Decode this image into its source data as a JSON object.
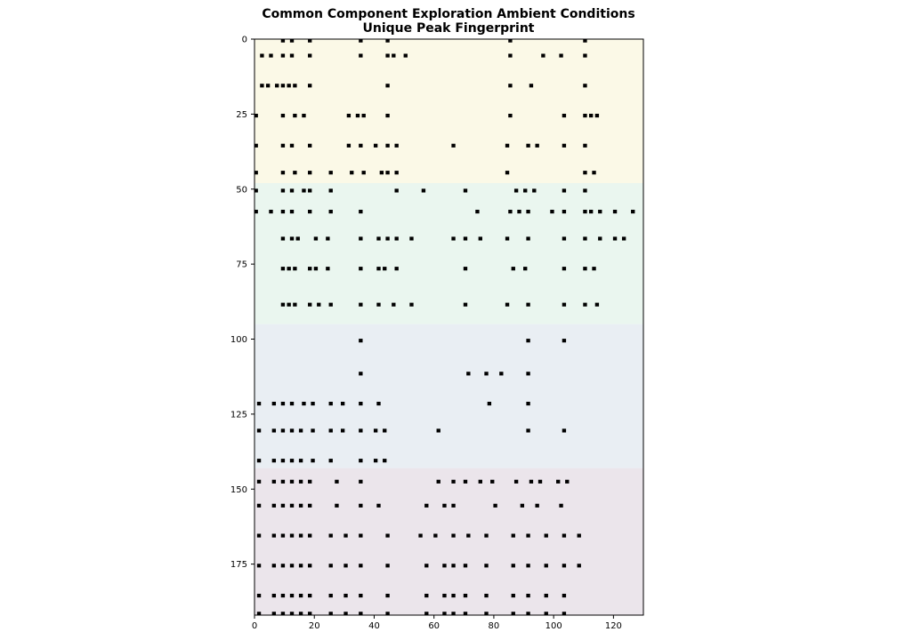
{
  "chart_data": {
    "type": "heatmap",
    "title": "Common Component Exploration Ambient Conditions",
    "subtitle": "Unique Peak Fingerprint",
    "xlabel": "",
    "ylabel": "",
    "xlim": [
      0,
      130
    ],
    "ylim": [
      192,
      0
    ],
    "x_ticks": [
      0,
      20,
      40,
      60,
      80,
      100,
      120
    ],
    "y_ticks": [
      0,
      25,
      50,
      75,
      100,
      125,
      150,
      175
    ],
    "grid": false,
    "n_columns": 130,
    "n_rows": 192,
    "bands": [
      {
        "row_start": 0,
        "row_end": 48,
        "color": "#fbf9e7"
      },
      {
        "row_start": 48,
        "row_end": 95,
        "color": "#eaf6ef"
      },
      {
        "row_start": 95,
        "row_end": 143,
        "color": "#e9eef3"
      },
      {
        "row_start": 143,
        "row_end": 192,
        "color": "#ebe5eb"
      }
    ],
    "mark_color": "#000000",
    "sample_marks": [
      {
        "row": 0,
        "cols": [
          9,
          12,
          18,
          35,
          44,
          85,
          110
        ]
      },
      {
        "row": 5,
        "cols": [
          2,
          5,
          9,
          12,
          18,
          35,
          44,
          46,
          50,
          85,
          96,
          102,
          110
        ]
      },
      {
        "row": 15,
        "cols": [
          2,
          4,
          7,
          9,
          11,
          13,
          18,
          44,
          85,
          92,
          110
        ]
      },
      {
        "row": 25,
        "cols": [
          0,
          9,
          13,
          16,
          31,
          34,
          36,
          44,
          85,
          103,
          110,
          112,
          114
        ]
      },
      {
        "row": 35,
        "cols": [
          0,
          9,
          12,
          18,
          31,
          35,
          40,
          44,
          47,
          66,
          84,
          91,
          94,
          103,
          110
        ]
      },
      {
        "row": 44,
        "cols": [
          0,
          9,
          13,
          18,
          25,
          32,
          36,
          42,
          44,
          47,
          84,
          110,
          113
        ]
      },
      {
        "row": 50,
        "cols": [
          0,
          9,
          12,
          16,
          18,
          25,
          47,
          56,
          70,
          87,
          90,
          93,
          103,
          110
        ]
      },
      {
        "row": 57,
        "cols": [
          0,
          5,
          9,
          12,
          18,
          25,
          35,
          74,
          85,
          88,
          91,
          99,
          103,
          110,
          112,
          115,
          120,
          126
        ]
      },
      {
        "row": 66,
        "cols": [
          9,
          12,
          14,
          20,
          24,
          35,
          41,
          44,
          47,
          52,
          66,
          70,
          75,
          84,
          91,
          103,
          110,
          115,
          120,
          123
        ]
      },
      {
        "row": 76,
        "cols": [
          9,
          11,
          13,
          18,
          20,
          24,
          35,
          41,
          43,
          47,
          70,
          86,
          90,
          103,
          110,
          113
        ]
      },
      {
        "row": 88,
        "cols": [
          9,
          11,
          13,
          18,
          21,
          25,
          35,
          41,
          46,
          52,
          70,
          84,
          91,
          103,
          110,
          114
        ]
      },
      {
        "row": 100,
        "cols": [
          35,
          91,
          103
        ]
      },
      {
        "row": 111,
        "cols": [
          35,
          71,
          77,
          82,
          91
        ]
      },
      {
        "row": 121,
        "cols": [
          1,
          6,
          9,
          12,
          16,
          19,
          25,
          29,
          35,
          41,
          78,
          91
        ]
      },
      {
        "row": 130,
        "cols": [
          1,
          6,
          9,
          12,
          15,
          19,
          25,
          29,
          35,
          40,
          43,
          61,
          91,
          103
        ]
      },
      {
        "row": 140,
        "cols": [
          1,
          6,
          9,
          12,
          15,
          19,
          25,
          35,
          40,
          43
        ]
      },
      {
        "row": 147,
        "cols": [
          1,
          6,
          9,
          12,
          15,
          18,
          27,
          35,
          61,
          66,
          70,
          75,
          79,
          87,
          92,
          95,
          101,
          104
        ]
      },
      {
        "row": 155,
        "cols": [
          1,
          6,
          9,
          12,
          15,
          18,
          27,
          35,
          41,
          57,
          63,
          66,
          80,
          89,
          94,
          102
        ]
      },
      {
        "row": 165,
        "cols": [
          1,
          6,
          9,
          12,
          15,
          18,
          25,
          30,
          35,
          44,
          55,
          60,
          66,
          71,
          77,
          86,
          91,
          97,
          103,
          108
        ]
      },
      {
        "row": 175,
        "cols": [
          1,
          6,
          9,
          12,
          15,
          18,
          25,
          30,
          35,
          44,
          57,
          63,
          66,
          70,
          77,
          86,
          91,
          97,
          103,
          108
        ]
      },
      {
        "row": 185,
        "cols": [
          1,
          6,
          9,
          12,
          15,
          18,
          25,
          30,
          35,
          44,
          57,
          63,
          66,
          70,
          77,
          86,
          91,
          97,
          103
        ]
      },
      {
        "row": 191,
        "cols": [
          1,
          6,
          9,
          12,
          15,
          18,
          25,
          30,
          35,
          44,
          57,
          63,
          66,
          70,
          77,
          86,
          91,
          97,
          103
        ]
      }
    ]
  }
}
